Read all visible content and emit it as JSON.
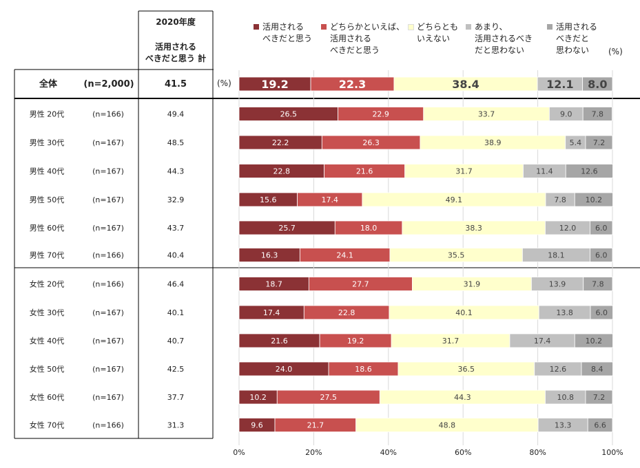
{
  "header": {
    "year": "2020年度",
    "sum_label": "活用される\nべきだと思う 計",
    "pct_unit_top": "(%)",
    "pct_unit_row": "(%)"
  },
  "colors": {
    "s1": "#8b3235",
    "s2": "#c8504f",
    "s3": "#ffffcc",
    "s4": "#c0c0c0",
    "s5": "#a6a6a6"
  },
  "chart_data": {
    "type": "bar",
    "orientation": "horizontal",
    "stacked": true,
    "xlim": [
      0,
      100
    ],
    "x_ticks": [
      "0%",
      "20%",
      "40%",
      "60%",
      "80%",
      "100%"
    ],
    "grid": true,
    "legend_position": "top",
    "series": [
      {
        "name": "活用される\nべきだと思う"
      },
      {
        "name": "どちらかといえば、\n活用される\nべきだと思う"
      },
      {
        "name": "どちらとも\nいえない"
      },
      {
        "name": "あまり、\n活用されるべき\nだと思わない"
      },
      {
        "name": "活用される\nべきだと\n思わない"
      }
    ],
    "rows": [
      {
        "label": "全体",
        "n": "(n=2,000)",
        "sum": "41.5",
        "values": [
          19.2,
          22.3,
          38.4,
          12.1,
          8.0
        ],
        "total": true
      },
      {
        "label": "男性 20代",
        "n": "(n=166)",
        "sum": "49.4",
        "values": [
          26.5,
          22.9,
          33.7,
          9.0,
          7.8
        ]
      },
      {
        "label": "男性 30代",
        "n": "(n=167)",
        "sum": "48.5",
        "values": [
          22.2,
          26.3,
          38.9,
          5.4,
          7.2
        ]
      },
      {
        "label": "男性 40代",
        "n": "(n=167)",
        "sum": "44.3",
        "values": [
          22.8,
          21.6,
          31.7,
          11.4,
          12.6
        ]
      },
      {
        "label": "男性 50代",
        "n": "(n=167)",
        "sum": "32.9",
        "values": [
          15.6,
          17.4,
          49.1,
          7.8,
          10.2
        ]
      },
      {
        "label": "男性 60代",
        "n": "(n=167)",
        "sum": "43.7",
        "values": [
          25.7,
          18.0,
          38.3,
          12.0,
          6.0
        ]
      },
      {
        "label": "男性 70代",
        "n": "(n=166)",
        "sum": "40.4",
        "values": [
          16.3,
          24.1,
          35.5,
          18.1,
          6.0
        ]
      },
      {
        "label": "女性 20代",
        "n": "(n=166)",
        "sum": "46.4",
        "values": [
          18.7,
          27.7,
          31.9,
          13.9,
          7.8
        ]
      },
      {
        "label": "女性 30代",
        "n": "(n=167)",
        "sum": "40.1",
        "values": [
          17.4,
          22.8,
          40.1,
          13.8,
          6.0
        ]
      },
      {
        "label": "女性 40代",
        "n": "(n=167)",
        "sum": "40.7",
        "values": [
          21.6,
          19.2,
          31.7,
          17.4,
          10.2
        ]
      },
      {
        "label": "女性 50代",
        "n": "(n=167)",
        "sum": "42.5",
        "values": [
          24.0,
          18.6,
          36.5,
          12.6,
          8.4
        ]
      },
      {
        "label": "女性 60代",
        "n": "(n=167)",
        "sum": "37.7",
        "values": [
          10.2,
          27.5,
          44.3,
          10.8,
          7.2
        ]
      },
      {
        "label": "女性 70代",
        "n": "(n=166)",
        "sum": "31.3",
        "values": [
          9.6,
          21.7,
          48.8,
          13.3,
          6.6
        ]
      }
    ]
  }
}
